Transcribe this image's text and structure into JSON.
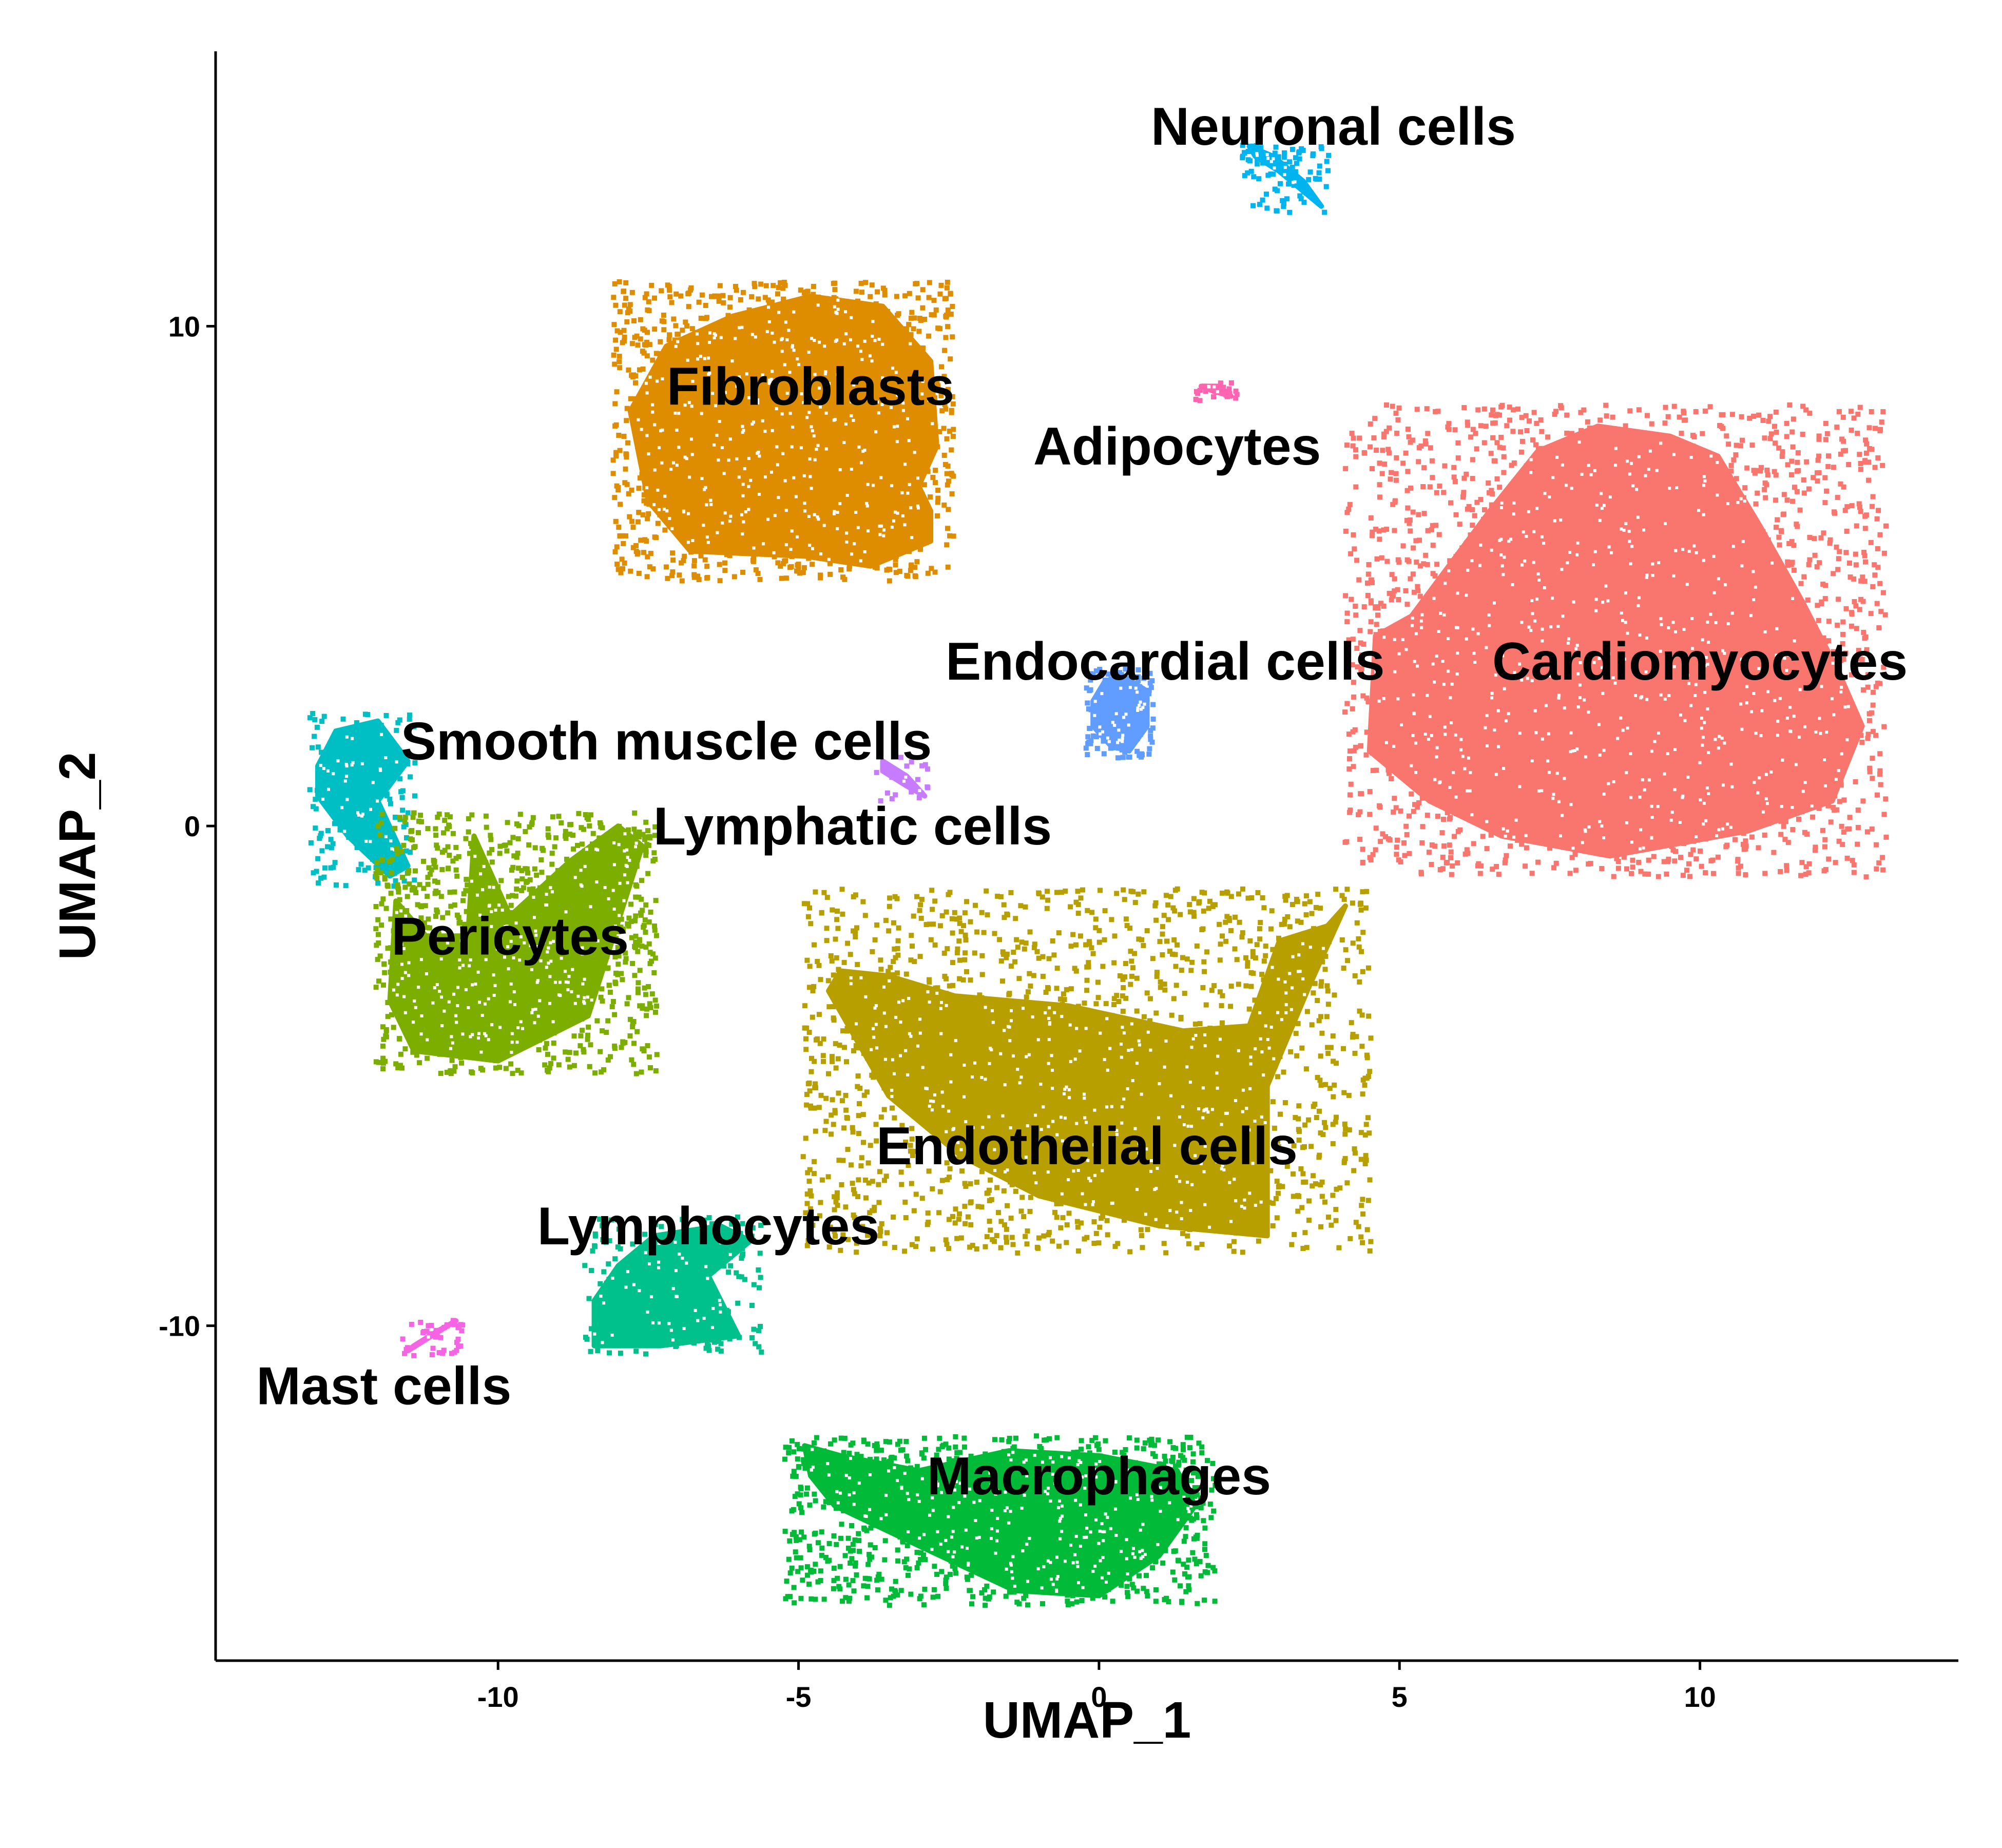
{
  "chart_data": {
    "type": "scatter",
    "title": "",
    "xlabel": "UMAP_1",
    "ylabel": "UMAP_2",
    "xlim": [
      -14.7,
      14.3
    ],
    "ylim": [
      -16.7,
      15.5
    ],
    "xticks": [
      -10,
      -5,
      0,
      5,
      10
    ],
    "yticks": [
      -10,
      0,
      10
    ],
    "x_tick_labels": [
      "-10",
      "-5",
      "0",
      "5",
      "10"
    ],
    "y_tick_labels": [
      "-10",
      "0",
      "10"
    ],
    "grid": false,
    "legend": "none",
    "clusters": [
      {
        "label": "Cardiomyocytes",
        "color": "#F8766D",
        "label_x": 10.0,
        "label_y": 3.3,
        "outline": [
          [
            4.5,
            1.5
          ],
          [
            4.6,
            3.8
          ],
          [
            5.2,
            4.2
          ],
          [
            6.5,
            6.3
          ],
          [
            7.3,
            7.5
          ],
          [
            8.3,
            8.0
          ],
          [
            9.5,
            7.8
          ],
          [
            10.3,
            7.4
          ],
          [
            11.0,
            6.0
          ],
          [
            11.7,
            4.5
          ],
          [
            12.3,
            3.1
          ],
          [
            12.7,
            2.0
          ],
          [
            12.2,
            0.5
          ],
          [
            10.8,
            -0.1
          ],
          [
            8.5,
            -0.6
          ],
          [
            6.7,
            -0.2
          ],
          [
            5.5,
            0.5
          ]
        ],
        "points": 4200
      },
      {
        "label": "Fibroblasts",
        "color": "#DE8C00",
        "label_x": -4.8,
        "label_y": 8.8,
        "outline": [
          [
            -7.8,
            8.3
          ],
          [
            -7.2,
            9.6
          ],
          [
            -6.1,
            10.2
          ],
          [
            -4.8,
            10.6
          ],
          [
            -3.6,
            10.4
          ],
          [
            -2.8,
            9.3
          ],
          [
            -2.7,
            7.6
          ],
          [
            -3.0,
            6.8
          ],
          [
            -2.8,
            6.3
          ],
          [
            -2.8,
            5.7
          ],
          [
            -3.8,
            5.2
          ],
          [
            -4.9,
            5.4
          ],
          [
            -6.8,
            5.5
          ],
          [
            -7.5,
            6.5
          ]
        ],
        "points": 2800
      },
      {
        "label": "Neuronal cells",
        "color": "#00B4EF",
        "label_x": 3.9,
        "label_y": 14.0,
        "outline": [
          [
            2.5,
            13.6
          ],
          [
            2.9,
            13.4
          ],
          [
            3.4,
            12.9
          ],
          [
            3.7,
            12.4
          ],
          [
            3.5,
            12.6
          ],
          [
            3.0,
            13.1
          ],
          [
            2.6,
            13.4
          ]
        ],
        "points": 90
      },
      {
        "label": "Adipocytes",
        "color": "#FF64B0",
        "label_x": 1.3,
        "label_y": 7.6,
        "outline": [
          [
            1.7,
            8.8
          ],
          [
            2.0,
            8.8
          ],
          [
            2.2,
            8.6
          ],
          [
            1.9,
            8.7
          ]
        ],
        "points": 30
      },
      {
        "label": "Endocardial cells",
        "color": "#619CFF",
        "label_x": 1.1,
        "label_y": 3.3,
        "outline": [
          [
            -0.1,
            2.5
          ],
          [
            0.1,
            2.9
          ],
          [
            0.4,
            3.0
          ],
          [
            0.8,
            2.7
          ],
          [
            0.8,
            2.0
          ],
          [
            0.5,
            1.5
          ],
          [
            0.2,
            1.6
          ],
          [
            -0.1,
            2.0
          ]
        ],
        "points": 260
      },
      {
        "label": "Smooth muscle cells",
        "color": "#00BFC4",
        "label_x": -7.2,
        "label_y": 1.7,
        "outline": [
          [
            -13.0,
            1.2
          ],
          [
            -12.7,
            1.9
          ],
          [
            -12.0,
            2.1
          ],
          [
            -11.5,
            1.3
          ],
          [
            -12.0,
            0.5
          ],
          [
            -11.5,
            -0.8
          ],
          [
            -11.8,
            -1.0
          ],
          [
            -12.5,
            -0.2
          ],
          [
            -13.0,
            0.6
          ]
        ],
        "points": 320
      },
      {
        "label": "Lymphatic cells",
        "color": "#C77CFF",
        "label_x": -4.1,
        "label_y": 0.0,
        "outline": [
          [
            -3.6,
            1.3
          ],
          [
            -3.2,
            1.0
          ],
          [
            -2.9,
            0.6
          ],
          [
            -3.2,
            0.8
          ],
          [
            -3.6,
            1.1
          ]
        ],
        "points": 25
      },
      {
        "label": "Pericytes",
        "color": "#7CAE00",
        "label_x": -9.8,
        "label_y": -2.2,
        "outline": [
          [
            -11.7,
            -1.5
          ],
          [
            -11.2,
            -2.2
          ],
          [
            -10.5,
            -2.2
          ],
          [
            -10.4,
            -0.2
          ],
          [
            -9.8,
            -1.8
          ],
          [
            -8.8,
            -0.7
          ],
          [
            -8.0,
            0.0
          ],
          [
            -7.6,
            -0.4
          ],
          [
            -8.5,
            -3.8
          ],
          [
            -10.0,
            -4.7
          ],
          [
            -11.4,
            -4.5
          ],
          [
            -11.8,
            -3.5
          ]
        ],
        "points": 1700
      },
      {
        "label": "Endothelial cells",
        "color": "#B79F00",
        "label_x": -0.2,
        "label_y": -6.4,
        "outline": [
          [
            -4.5,
            -3.3
          ],
          [
            -4.3,
            -2.9
          ],
          [
            -3.5,
            -3.0
          ],
          [
            -2.4,
            -3.4
          ],
          [
            -0.5,
            -3.6
          ],
          [
            1.4,
            -4.1
          ],
          [
            2.5,
            -4.0
          ],
          [
            3.0,
            -2.3
          ],
          [
            3.8,
            -2.0
          ],
          [
            4.1,
            -1.6
          ],
          [
            3.5,
            -3.2
          ],
          [
            2.8,
            -5.2
          ],
          [
            2.8,
            -8.2
          ],
          [
            1.0,
            -8.0
          ],
          [
            -1.0,
            -7.4
          ],
          [
            -2.3,
            -6.6
          ],
          [
            -3.5,
            -5.4
          ]
        ],
        "points": 2600
      },
      {
        "label": "Lymphocytes",
        "color": "#00C08B",
        "label_x": -6.5,
        "label_y": -8.0,
        "outline": [
          [
            -8.4,
            -9.5
          ],
          [
            -8.0,
            -8.8
          ],
          [
            -7.4,
            -8.2
          ],
          [
            -6.3,
            -8.0
          ],
          [
            -5.8,
            -8.3
          ],
          [
            -6.5,
            -9.0
          ],
          [
            -6.0,
            -10.2
          ],
          [
            -7.3,
            -10.4
          ],
          [
            -8.4,
            -10.4
          ]
        ],
        "points": 360
      },
      {
        "label": "Mast cells",
        "color": "#F564E3",
        "label_x": -11.9,
        "label_y": -11.2,
        "outline": [
          [
            -11.5,
            -10.5
          ],
          [
            -11.1,
            -10.2
          ],
          [
            -10.7,
            -9.9
          ],
          [
            -11.0,
            -10.1
          ],
          [
            -11.4,
            -10.4
          ]
        ],
        "points": 40
      },
      {
        "label": "Macrophages",
        "color": "#00BA38",
        "label_x": 0.0,
        "label_y": -13.0,
        "outline": [
          [
            -4.9,
            -12.4
          ],
          [
            -4.3,
            -12.6
          ],
          [
            -3.0,
            -12.9
          ],
          [
            -1.5,
            -12.5
          ],
          [
            0.0,
            -12.6
          ],
          [
            1.3,
            -12.9
          ],
          [
            1.6,
            -13.6
          ],
          [
            1.0,
            -14.6
          ],
          [
            0.0,
            -15.4
          ],
          [
            -1.4,
            -15.3
          ],
          [
            -3.0,
            -14.4
          ],
          [
            -4.4,
            -13.6
          ],
          [
            -4.8,
            -13.0
          ]
        ],
        "points": 1900
      }
    ]
  }
}
